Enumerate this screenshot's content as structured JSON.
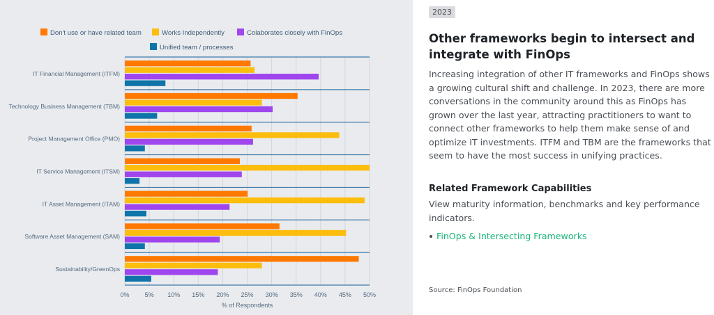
{
  "chart_data": {
    "type": "bar",
    "orientation": "horizontal",
    "categories": [
      "IT Financial Management (ITFM)",
      "Technology Business Management (TBM)",
      "Project Management Office (PMO)",
      "IT Service Management (ITSM)",
      "IT Asset Management (ITAM)",
      "Software Asset Management (SAM)",
      "Sustainability/GreenOps"
    ],
    "series": [
      {
        "name": "Don't use or have related team",
        "color": "#ff7800",
        "values": [
          25.7,
          35.3,
          25.9,
          23.5,
          25.1,
          31.6,
          47.8
        ]
      },
      {
        "name": "Works Independently",
        "color": "#fcbd0d",
        "values": [
          26.5,
          28.0,
          43.8,
          50.0,
          49.0,
          45.2,
          28.0
        ]
      },
      {
        "name": "Colaborates closely with FinOps",
        "color": "#9f46ee",
        "values": [
          39.6,
          30.2,
          26.2,
          23.9,
          21.4,
          19.4,
          19.0
        ]
      },
      {
        "name": "Unified team / processes",
        "color": "#0f74a9",
        "values": [
          8.3,
          6.6,
          4.1,
          3.0,
          4.4,
          4.1,
          5.4
        ]
      }
    ],
    "xlabel": "% of Respondents",
    "ylabel": "",
    "xlim": [
      0,
      50
    ],
    "xticks": [
      "0%",
      "5%",
      "10%",
      "15%",
      "20%",
      "25%",
      "30%",
      "35%",
      "40%",
      "45%",
      "50%"
    ],
    "grid": true,
    "legend_position": "top"
  },
  "text": {
    "year_badge": "2023",
    "headline": "Other frameworks begin to intersect and integrate with FinOps",
    "body": "Increasing integration of other IT frameworks and FinOps shows a growing cultural shift and challenge. In 2023, there are more conversations in the community around this as FinOps has grown over the last year, attracting practitioners to want to connect other frameworks to help them make sense of and optimize IT investments. ITFM and TBM are the frameworks that seem to have the most success in unifying practices.",
    "related_heading": "Related Framework Capabilities",
    "related_text": "View maturity information, benchmarks and key performance indicators.",
    "link_label": "FinOps & Intersecting Frameworks",
    "source": "Source: FinOps Foundation"
  }
}
